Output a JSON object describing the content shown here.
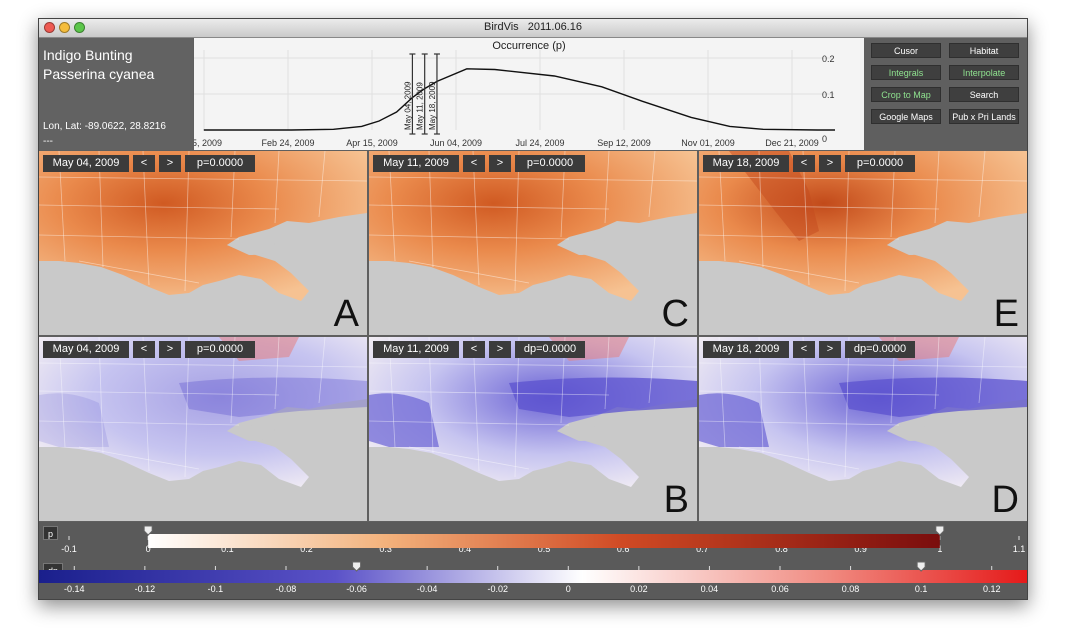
{
  "window": {
    "title": "BirdVis",
    "date": "2011.06.16"
  },
  "species": {
    "common": "Indigo Bunting",
    "latin": "Passerina cyanea",
    "coords": "Lon, Lat: -89.0622, 28.8216",
    "extra": "---"
  },
  "chart_data": {
    "type": "line",
    "title": "Occurrence (p)",
    "x_tick_labels": [
      "5, 2009",
      "Feb 24, 2009",
      "Apr 15, 2009",
      "Jun 04, 2009",
      "Jul 24, 2009",
      "Sep 12, 2009",
      "Nov 01, 2009",
      "Dec 21, 2009"
    ],
    "y_tick_labels": [
      "0.2",
      "0.1",
      "0"
    ],
    "ylim": [
      0,
      0.2
    ],
    "grid": true,
    "x": [
      "Jan 05",
      "Feb 24",
      "Mar 20",
      "Apr 05",
      "Apr 15",
      "Apr 25",
      "May 04",
      "May 11",
      "May 18",
      "Jun 04",
      "Jun 20",
      "Jul 24",
      "Aug 20",
      "Sep 12",
      "Oct 10",
      "Nov 01",
      "Nov 20",
      "Dec 21",
      "Dec 31"
    ],
    "values": [
      0,
      0,
      0.002,
      0.01,
      0.025,
      0.05,
      0.09,
      0.115,
      0.135,
      0.17,
      0.168,
      0.15,
      0.12,
      0.08,
      0.035,
      0.01,
      0.002,
      0,
      0
    ],
    "markers": [
      "May 04, 2009",
      "May 11, 2009",
      "May 18, 2009"
    ]
  },
  "controls": [
    {
      "label": "Cusor",
      "active": false
    },
    {
      "label": "Habitat",
      "active": false
    },
    {
      "label": "Integrals",
      "active": true
    },
    {
      "label": "Interpolate",
      "active": true
    },
    {
      "label": "Crop to Map",
      "active": true
    },
    {
      "label": "Search",
      "active": false
    },
    {
      "label": "Google Maps",
      "active": false
    },
    {
      "label": "Pub x Pri Lands",
      "active": false
    }
  ],
  "panels": {
    "A": {
      "date": "May 04, 2009",
      "prev": "<",
      "next": ">",
      "value": "p=0.0000",
      "label": "A"
    },
    "C": {
      "date": "May 11, 2009",
      "prev": "<",
      "next": ">",
      "value": "p=0.0000",
      "label": "C"
    },
    "E": {
      "date": "May 18, 2009",
      "prev": "<",
      "next": ">",
      "value": "p=0.0000",
      "label": "E"
    },
    "F": {
      "date": "May 04, 2009",
      "prev": "<",
      "next": ">",
      "value": "p=0.0000",
      "label": ""
    },
    "B": {
      "date": "May 11, 2009",
      "prev": "<",
      "next": ">",
      "value": "dp=0.0000",
      "label": "B"
    },
    "D": {
      "date": "May 18, 2009",
      "prev": "<",
      "next": ">",
      "value": "dp=0.0000",
      "label": "D"
    }
  },
  "scales": {
    "p": {
      "tag": "p",
      "ticks": [
        "-0.1",
        "0",
        "0.1",
        "0.2",
        "0.3",
        "0.4",
        "0.5",
        "0.6",
        "0.7",
        "0.8",
        "0.9",
        "1",
        "1.1"
      ],
      "slider_low": 0,
      "slider_high": 1
    },
    "dp": {
      "tag": "dp",
      "ticks": [
        "-0.14",
        "-0.12",
        "-0.1",
        "-0.08",
        "-0.06",
        "-0.04",
        "-0.02",
        "0",
        "0.02",
        "0.04",
        "0.06",
        "0.08",
        "0.1",
        "0.12"
      ],
      "slider_low": -0.06,
      "slider_high": 0.1
    }
  }
}
